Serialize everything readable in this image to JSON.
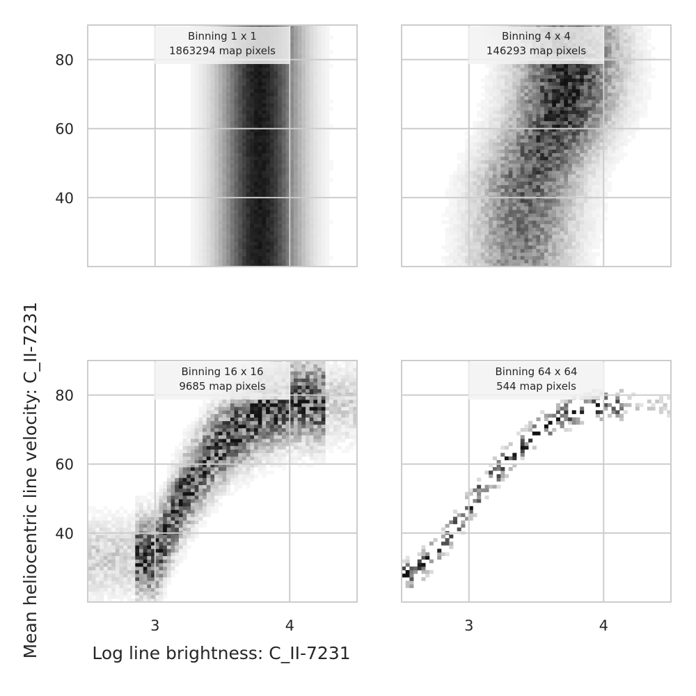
{
  "chart_data": {
    "type": "heatmap",
    "xlabel": "Log line brightness: C_II-7231",
    "ylabel": "Mean heliocentric line velocity: C_II-7231",
    "xlim": [
      2.5,
      4.5
    ],
    "ylim": [
      20,
      90
    ],
    "xticks": [
      3,
      4
    ],
    "yticks": [
      40,
      60,
      80
    ],
    "grid": true,
    "colormap": "greys",
    "panels": [
      {
        "binning_label": "Binning 1 x 1",
        "count_label": "1863294 map pixels",
        "trend": [
          [
            2.5,
            3.78
          ],
          [
            90,
            3.78
          ]
        ],
        "x_spread": 0.2,
        "y_spread": 0
      },
      {
        "binning_label": "Binning 4 x 4",
        "count_label": "146293 map pixels",
        "trend": [
          [
            22,
            3.38
          ],
          [
            45,
            3.45
          ],
          [
            65,
            3.7
          ],
          [
            80,
            3.75
          ],
          [
            90,
            3.72
          ]
        ],
        "x_spread": 0.24,
        "y_spread": 0
      },
      {
        "binning_label": "Binning 16 x 16",
        "count_label": "9685 map pixels",
        "trend": [
          [
            3.0,
            33
          ],
          [
            3.2,
            50
          ],
          [
            3.4,
            62
          ],
          [
            3.6,
            70
          ],
          [
            3.8,
            75
          ],
          [
            4.0,
            78
          ]
        ],
        "x_spread": 0.12,
        "y_spread": 7
      },
      {
        "binning_label": "Binning 64 x 64",
        "count_label": "544 map pixels",
        "trend": [
          [
            2.6,
            28
          ],
          [
            2.9,
            42
          ],
          [
            3.1,
            53
          ],
          [
            3.3,
            62
          ],
          [
            3.5,
            69
          ],
          [
            3.7,
            74
          ],
          [
            3.9,
            77
          ]
        ],
        "x_spread": 0.05,
        "y_spread": 2.5
      }
    ]
  },
  "colors": {
    "grid": "#cccccc",
    "dark": "#000000",
    "text": "#262626",
    "annotation_box": "#f2f2f2"
  }
}
